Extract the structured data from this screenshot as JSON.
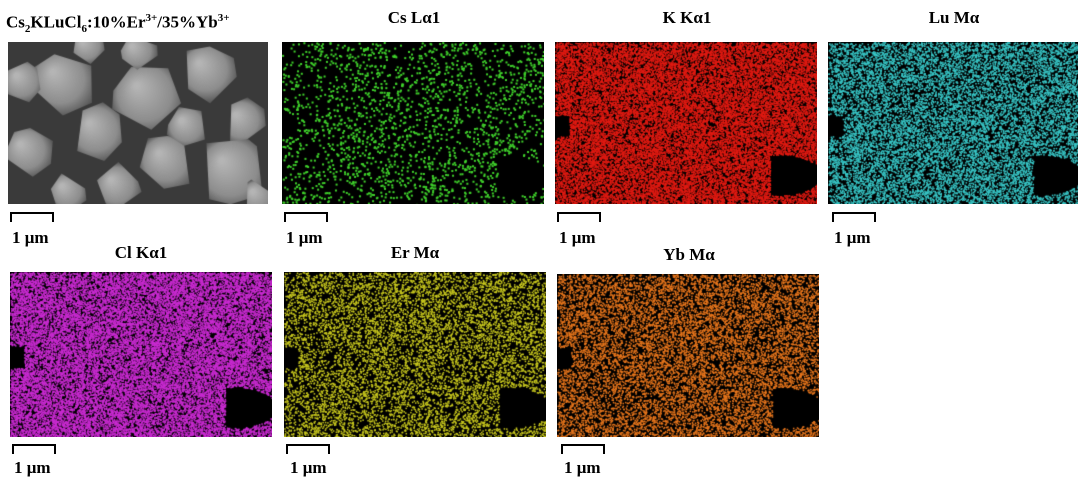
{
  "figure": {
    "sample_title": {
      "base": "Cs",
      "sub1": "2",
      "mid": "KLuCl",
      "sub2": "6",
      "mid2": ":10%Er",
      "sup1": "3+",
      "mid3": "/35%Yb",
      "sup2": "3+"
    },
    "panels": [
      {
        "id": "sem",
        "title": "",
        "scale": "1 μm",
        "type": "sem",
        "color": "#8a8a8a"
      },
      {
        "id": "cs",
        "title": "Cs Lα1",
        "scale": "1 μm",
        "type": "map",
        "color": "#3fd12b"
      },
      {
        "id": "k",
        "title": "K Kα1",
        "scale": "1 μm",
        "type": "map",
        "color": "#e01a12"
      },
      {
        "id": "lu",
        "title": "Lu Mα",
        "scale": "1 μm",
        "type": "map",
        "color": "#38c6c6"
      },
      {
        "id": "cl",
        "title": "Cl Kα1",
        "scale": "1 μm",
        "type": "map",
        "color": "#c82ad0"
      },
      {
        "id": "er",
        "title": "Er Mα",
        "scale": "1 μm",
        "type": "map",
        "color": "#c8c81e"
      },
      {
        "id": "yb",
        "title": "Yb Mα",
        "scale": "1 μm",
        "type": "map",
        "color": "#e8761c"
      }
    ]
  }
}
